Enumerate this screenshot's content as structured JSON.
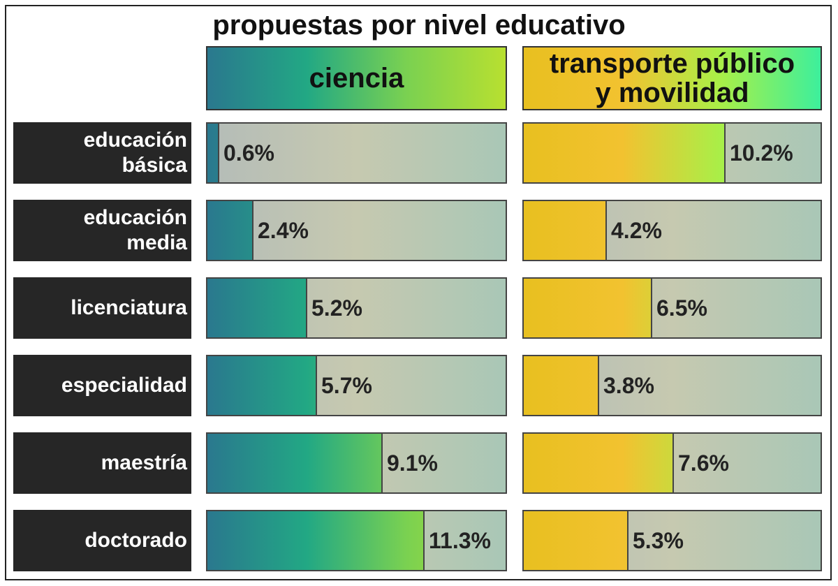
{
  "chart_data": {
    "type": "bar",
    "title": "propuestas por nivel educativo",
    "categories": [
      [
        "educación",
        "básica"
      ],
      [
        "educación",
        "media"
      ],
      [
        "licenciatura"
      ],
      [
        "especialidad"
      ],
      [
        "maestría"
      ],
      [
        "doctorado"
      ]
    ],
    "series": [
      {
        "name": "ciencia",
        "values": [
          0.6,
          2.4,
          5.2,
          5.7,
          9.1,
          11.3
        ],
        "labels": [
          "0.6%",
          "2.4%",
          "5.2%",
          "5.7%",
          "9.1%",
          "11.3%"
        ],
        "max": 15.5,
        "gradient": [
          "#2a788e",
          "#22a884",
          "#7ad151",
          "#b8e030"
        ]
      },
      {
        "name": [
          "transporte público",
          "y movilidad"
        ],
        "values": [
          10.2,
          4.2,
          6.5,
          3.8,
          7.6,
          5.3
        ],
        "labels": [
          "10.2%",
          "4.2%",
          "6.5%",
          "3.8%",
          "7.6%",
          "5.3%"
        ],
        "max": 15.0,
        "gradient": [
          "#e8c020",
          "#f2c230",
          "#a8ef48",
          "#3def9c"
        ]
      }
    ],
    "track_color_range": [
      "#b4bcb8",
      "#c6c9b0",
      "#a9c7b6"
    ],
    "label_box_color": "#262626"
  }
}
